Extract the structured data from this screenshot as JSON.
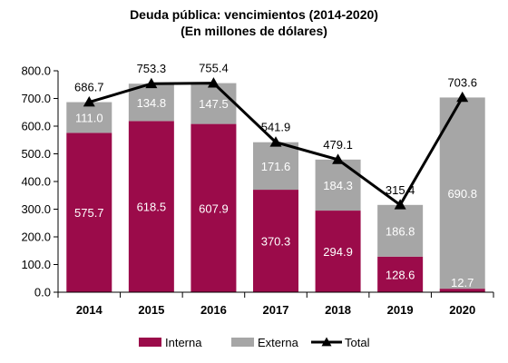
{
  "chart_data": {
    "type": "bar",
    "stacked": true,
    "title": "Deuda pública: vencimientos (2014-2020)",
    "subtitle": "(En millones de dólares)",
    "categories": [
      "2014",
      "2015",
      "2016",
      "2017",
      "2018",
      "2019",
      "2020"
    ],
    "series": [
      {
        "name": "Interna",
        "type": "bar",
        "color": "#9b0b4a",
        "values": [
          575.7,
          618.5,
          607.9,
          370.3,
          294.9,
          128.6,
          12.7
        ],
        "labels": [
          "575.7",
          "618.5",
          "607.9",
          "370.3",
          "294.9",
          "128.6",
          "12.7"
        ]
      },
      {
        "name": "Externa",
        "type": "bar",
        "color": "#a6a6a6",
        "values": [
          111.0,
          134.8,
          147.5,
          171.6,
          184.3,
          186.8,
          690.8
        ],
        "labels": [
          "111.0",
          "134.8",
          "147.5",
          "171.6",
          "184.3",
          "186.8",
          "690.8"
        ]
      },
      {
        "name": "Total",
        "type": "line",
        "color": "#000000",
        "values": [
          686.7,
          753.3,
          755.4,
          541.9,
          479.1,
          315.4,
          703.6
        ],
        "labels": [
          "686.7",
          "753.3",
          "755.4",
          "541.9",
          "479.1",
          "315.4",
          "703.6"
        ]
      }
    ],
    "ylim": [
      0,
      800
    ],
    "yticks": [
      "0.0",
      "100.0",
      "200.0",
      "300.0",
      "400.0",
      "500.0",
      "600.0",
      "700.0",
      "800.0"
    ],
    "ytick_values": [
      0,
      100,
      200,
      300,
      400,
      500,
      600,
      700,
      800
    ],
    "grid": false,
    "legend": "bottom"
  }
}
